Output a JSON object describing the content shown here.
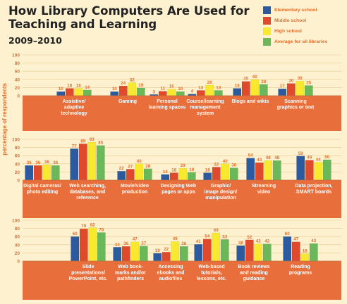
{
  "title": {
    "line1": "How Library Computers Are Used for",
    "line2": "Teaching and Learning"
  },
  "subtitle": "2009–2010",
  "ylabel": "percentage of respondents",
  "legend": [
    {
      "label": "Elementary school",
      "color": "#2b5a9e"
    },
    {
      "label": "Middle school",
      "color": "#e04a2c"
    },
    {
      "label": "High school",
      "color": "#f8e830"
    },
    {
      "label": "Average for all libraries",
      "color": "#6ab85a"
    }
  ],
  "chart_data": [
    {
      "type": "bar",
      "ylim": [
        0,
        100
      ],
      "yticks": [
        0,
        20,
        40,
        60,
        80,
        100
      ],
      "categories": [
        [
          "Assistive/",
          "adaptive",
          "technology"
        ],
        [
          "Gaming"
        ],
        [
          "Personal",
          "learning spaces"
        ],
        [
          "Course/learning",
          "management",
          "system"
        ],
        [
          "Blogs and wikis"
        ],
        [
          "Scanning",
          "graphics or text"
        ]
      ],
      "series": [
        {
          "name": "Elementary school",
          "values": [
            10,
            10,
            3,
            4,
            18,
            17
          ]
        },
        {
          "name": "Middle school",
          "values": [
            18,
            24,
            11,
            13,
            35,
            30
          ]
        },
        {
          "name": "High school",
          "values": [
            18,
            32,
            16,
            26,
            40,
            36
          ]
        },
        {
          "name": "Average for all libraries",
          "values": [
            14,
            19,
            10,
            13,
            28,
            25
          ]
        }
      ]
    },
    {
      "type": "bar",
      "ylim": [
        0,
        100
      ],
      "yticks": [
        0,
        20,
        40,
        60,
        80,
        100
      ],
      "categories": [
        [
          "Digital cameras/",
          "photo editing"
        ],
        [
          "Web searching,",
          "databases, and",
          "reference"
        ],
        [
          "Movie/video",
          "production"
        ],
        [
          "Designing Web",
          "pages or apps"
        ],
        [
          "Graphic/",
          "image design/",
          "manipulation"
        ],
        [
          "Streaming",
          "video"
        ],
        [
          "Data projection,",
          "SMART boards"
        ]
      ],
      "series": [
        {
          "name": "Elementary school",
          "values": [
            36,
            77,
            22,
            14,
            18,
            54,
            59
          ]
        },
        {
          "name": "Middle school",
          "values": [
            36,
            89,
            27,
            18,
            32,
            43,
            49
          ]
        },
        {
          "name": "High school",
          "values": [
            38,
            93,
            40,
            29,
            40,
            48,
            44
          ]
        },
        {
          "name": "Average for all libraries",
          "values": [
            36,
            85,
            28,
            19,
            30,
            48,
            50
          ]
        }
      ]
    },
    {
      "type": "bar",
      "ylim": [
        0,
        100
      ],
      "yticks": [
        0,
        20,
        40,
        60,
        80,
        100
      ],
      "categories": [
        [
          "Slide",
          "presentations/",
          "PowerPoint, etc."
        ],
        [
          "Web book-",
          "marks and/or",
          "pathfinders"
        ],
        [
          "Accessing",
          "ebooks and",
          "audiofiles"
        ],
        [
          "Web-based",
          "tutorials,",
          "lessons, etc."
        ],
        [
          "Book reviews",
          "and reading",
          "guidance"
        ],
        [
          "Reading",
          "programs"
        ]
      ],
      "series": [
        {
          "name": "Elementary school",
          "values": [
            60,
            34,
            19,
            41,
            38,
            60
          ]
        },
        {
          "name": "Middle school",
          "values": [
            79,
            36,
            22,
            54,
            52,
            47
          ]
        },
        {
          "name": "High school",
          "values": [
            82,
            47,
            48,
            69,
            42,
            18
          ]
        },
        {
          "name": "Average for all libraries",
          "values": [
            70,
            37,
            36,
            53,
            42,
            43
          ]
        }
      ]
    }
  ]
}
